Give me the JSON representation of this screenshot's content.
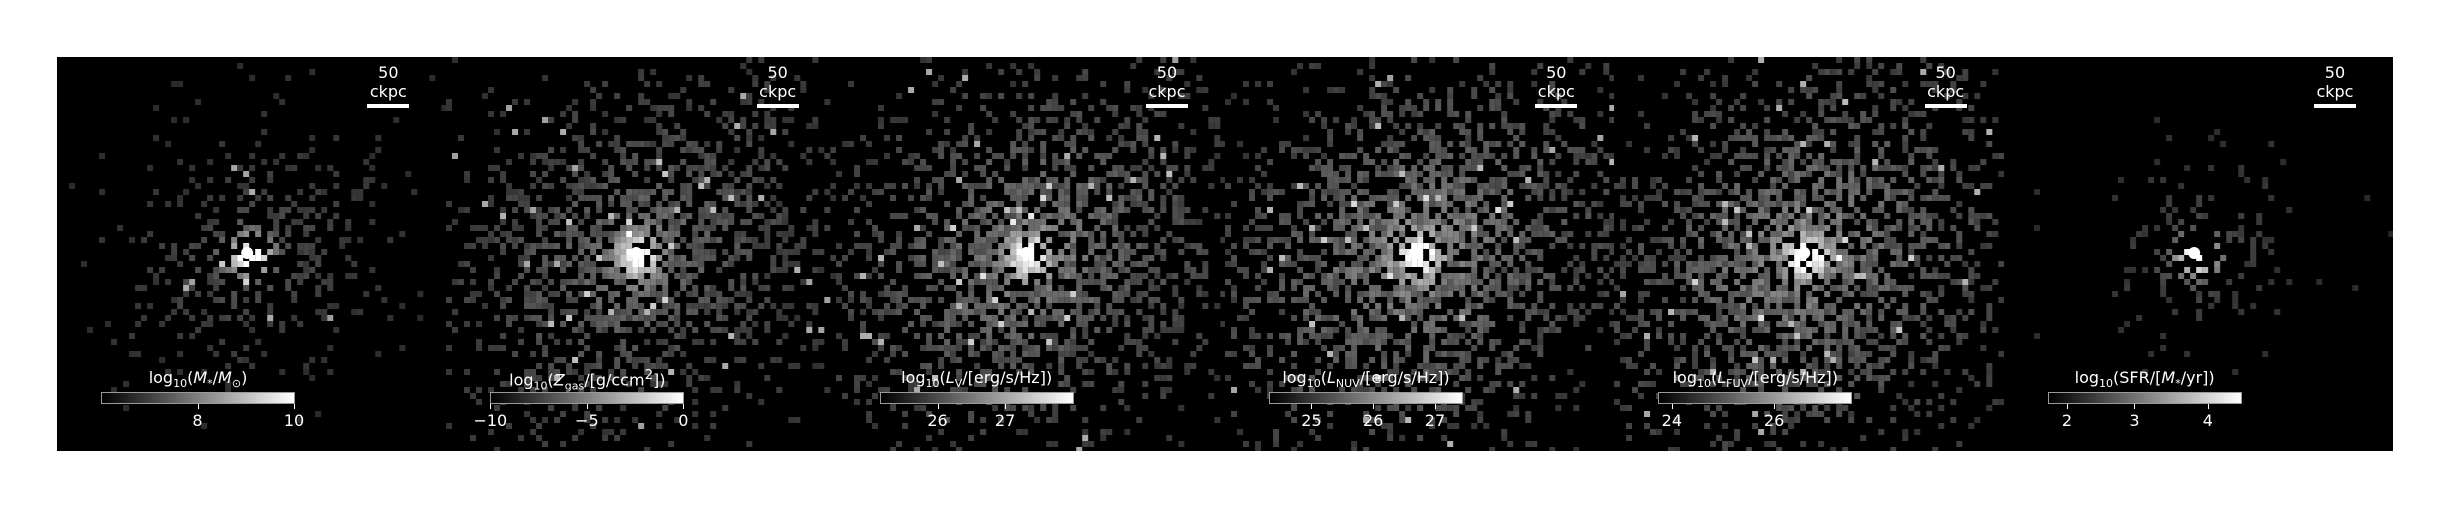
{
  "scale_bar_label": "50 ckpc",
  "panels": [
    {
      "id": "mstar",
      "title_html": "log<sub>10</sub>(<i>M</i><sub>*</sub>/<i>M</i><sub>⊙</sub>)",
      "ticks": [
        {
          "label": "8",
          "frac": 0.5
        },
        {
          "label": "10",
          "frac": 1.0
        }
      ],
      "map": {
        "spread": 0.45,
        "density": 0.4,
        "diffuse": 0.3,
        "core": 1.0
      }
    },
    {
      "id": "metallicity",
      "title_html": "log<sub>10</sub>(<i>Z</i><sub>gas</sub>/[g/ccm<sup>2</sup>])",
      "ticks": [
        {
          "label": "−10",
          "frac": 0.0
        },
        {
          "label": "−5",
          "frac": 0.5
        },
        {
          "label": "0",
          "frac": 1.0
        }
      ],
      "map": {
        "spread": 0.7,
        "density": 0.65,
        "diffuse": 0.45,
        "core": 0.85
      }
    },
    {
      "id": "lv",
      "title_html": "log<sub>10</sub>(<i>L</i><sub>V</sub>/[erg/s/Hz])",
      "ticks": [
        {
          "label": "26",
          "frac": 0.3
        },
        {
          "label": "27",
          "frac": 0.65
        }
      ],
      "map": {
        "spread": 0.72,
        "density": 0.7,
        "diffuse": 0.55,
        "core": 0.8
      }
    },
    {
      "id": "lnuv",
      "title_html": "log<sub>10</sub>(<i>L</i><sub>NUV</sub>/[erg/s/Hz])",
      "ticks": [
        {
          "label": "25",
          "frac": 0.22
        },
        {
          "label": "26",
          "frac": 0.54
        },
        {
          "label": "27",
          "frac": 0.86
        }
      ],
      "map": {
        "spread": 0.75,
        "density": 0.72,
        "diffuse": 0.6,
        "core": 0.8
      }
    },
    {
      "id": "lfuv",
      "title_html": "log<sub>10</sub>(<i>L</i><sub>FUV</sub>/[erg/s/Hz])",
      "ticks": [
        {
          "label": "24",
          "frac": 0.07
        },
        {
          "label": "26",
          "frac": 0.6
        }
      ],
      "map": {
        "spread": 0.75,
        "density": 0.72,
        "diffuse": 0.6,
        "core": 0.8
      }
    },
    {
      "id": "sfr",
      "title_html": "log<sub>10</sub>(SFR/[<i>M</i><sub>*</sub>/yr])",
      "ticks": [
        {
          "label": "2",
          "frac": 0.1
        },
        {
          "label": "3",
          "frac": 0.45
        },
        {
          "label": "4",
          "frac": 0.83
        }
      ],
      "map": {
        "spread": 0.35,
        "density": 0.25,
        "diffuse": 0.25,
        "core": 1.0
      }
    }
  ]
}
